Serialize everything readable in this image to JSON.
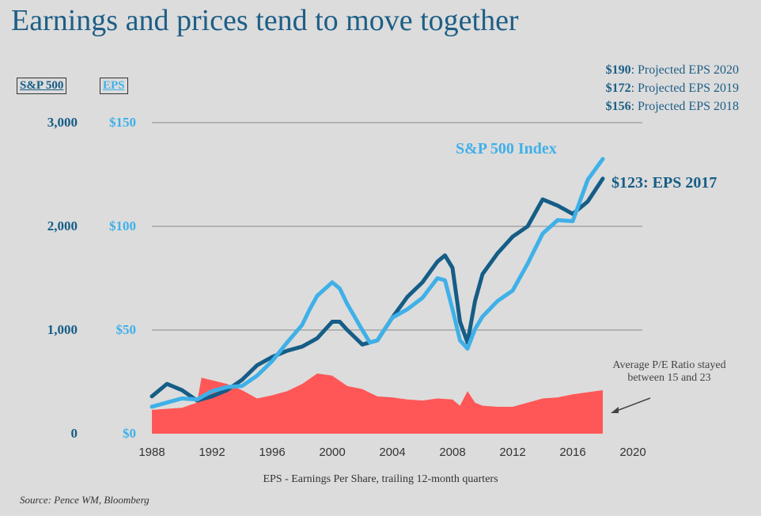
{
  "chart_data": {
    "type": "line",
    "title": "Earnings and prices tend to move together",
    "xlabel": "EPS - Earnings Per Share, trailing 12-month quarters",
    "left_axis_label": "S&P 500",
    "right_axis_label": "EPS",
    "left_ticks": [
      "3,000",
      "2,000",
      "1,000",
      "0"
    ],
    "right_ticks": [
      "$150",
      "$100",
      "$50",
      "$0"
    ],
    "x_ticks": [
      "1988",
      "1992",
      "1996",
      "2000",
      "2004",
      "2008",
      "2012",
      "2016",
      "2020"
    ],
    "xlim": [
      1988,
      2020
    ],
    "ylim_left": [
      0,
      3000
    ],
    "ylim_right": [
      0,
      150
    ],
    "grid": "horizontal",
    "series": [
      {
        "name": "S&P 500 Index",
        "axis": "left",
        "color": "#3fb0e8",
        "x": [
          1988,
          1989,
          1990,
          1991,
          1992,
          1993,
          1994,
          1995,
          1996,
          1997,
          1998,
          1998.5,
          1999,
          2000,
          2000.5,
          2001,
          2002,
          2002.5,
          2003,
          2004,
          2005,
          2006,
          2007,
          2007.5,
          2008,
          2008.5,
          2009,
          2009.5,
          2010,
          2011,
          2012,
          2013,
          2014,
          2015,
          2016,
          2017,
          2018
        ],
        "y": [
          260,
          300,
          340,
          330,
          410,
          450,
          460,
          560,
          700,
          880,
          1050,
          1200,
          1330,
          1460,
          1400,
          1250,
          1000,
          880,
          900,
          1120,
          1200,
          1310,
          1500,
          1480,
          1200,
          900,
          820,
          1010,
          1130,
          1280,
          1380,
          1640,
          1930,
          2060,
          2050,
          2450,
          2650
        ]
      },
      {
        "name": "EPS",
        "axis": "right",
        "color": "#155d86",
        "x": [
          1988,
          1989,
          1990,
          1991,
          1992,
          1993,
          1994,
          1995,
          1996,
          1997,
          1998,
          1999,
          2000,
          2000.5,
          2001,
          2002,
          2003,
          2004,
          2005,
          2006,
          2007,
          2007.5,
          2008,
          2008.5,
          2009,
          2009.5,
          2010,
          2011,
          2012,
          2013,
          2014,
          2015,
          2016,
          2017,
          2018
        ],
        "y": [
          18,
          24,
          21,
          16,
          18,
          21,
          26,
          33,
          37,
          40,
          42,
          46,
          54,
          54,
          50,
          43,
          45,
          56,
          66,
          73,
          83,
          86,
          80,
          54,
          44,
          64,
          77,
          87,
          95,
          100,
          113,
          110,
          106,
          112,
          123
        ]
      },
      {
        "name": "Average P/E Ratio",
        "type": "area",
        "axis": "left",
        "color": "#ff5757",
        "x": [
          1988,
          1990,
          1991,
          1991.3,
          1993,
          1994,
          1995,
          1996,
          1997,
          1998,
          1999,
          2000,
          2001,
          2002,
          2003,
          2004,
          2005,
          2006,
          2007,
          2008,
          2008.5,
          2009,
          2009.5,
          2010,
          2011,
          2012,
          2013,
          2014,
          2015,
          2016,
          2017,
          2018
        ],
        "y": [
          230,
          250,
          300,
          540,
          480,
          420,
          340,
          370,
          410,
          480,
          580,
          560,
          460,
          430,
          360,
          350,
          330,
          320,
          340,
          330,
          270,
          410,
          300,
          270,
          260,
          260,
          300,
          340,
          350,
          380,
          400,
          420
        ]
      }
    ],
    "annotations": {
      "sp_label": "S&P 500 Index",
      "eps_label": "$123: EPS 2017",
      "pe_note": "Average P/E Ratio stayed between 15 and 23",
      "projections": [
        {
          "value": "$190",
          "text": ": Projected EPS 2020"
        },
        {
          "value": "$172",
          "text": ": Projected EPS 2019"
        },
        {
          "value": "$156",
          "text": ": Projected EPS 2018"
        }
      ]
    },
    "source": "Source: Pence WM, Bloomberg"
  }
}
